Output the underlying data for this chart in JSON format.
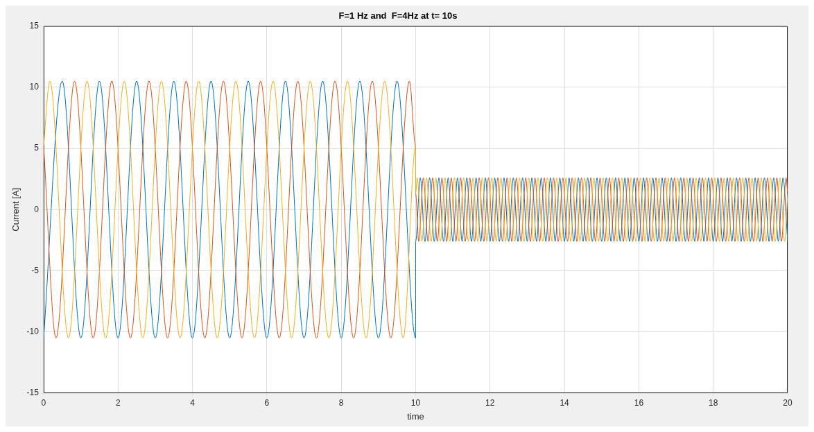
{
  "chart_data": {
    "type": "line",
    "title": "F=1 Hz and  F=4Hz at t= 10s",
    "xlabel": "time",
    "ylabel": "Current [A]",
    "xlim": [
      0,
      20
    ],
    "xticks": [
      0,
      2,
      4,
      6,
      8,
      10,
      12,
      14,
      16,
      18,
      20
    ],
    "ylim": [
      -15,
      15
    ],
    "yticks": [
      -15,
      -10,
      -5,
      0,
      5,
      10,
      15
    ],
    "grid": true,
    "marker": "none",
    "line_style": "solid",
    "series": [
      {
        "color": "#0072bd",
        "x": [
          0,
          0.5,
          1,
          1.5,
          2,
          2.5,
          3,
          3.5,
          4,
          4.5,
          5,
          5.5,
          6,
          6.5,
          7,
          7.5,
          8,
          8.5,
          9,
          9.5,
          10,
          10,
          10.125,
          10.25,
          10.375,
          10.5,
          10.625,
          10.75,
          10.875,
          11,
          11.125,
          11.25,
          11.375,
          11.5,
          11.625,
          11.75,
          11.875,
          12,
          12.125,
          12.25,
          12.375,
          12.5,
          12.625,
          12.75,
          12.875,
          13,
          13.125,
          13.25,
          13.375,
          13.5,
          13.625,
          13.75,
          13.875,
          14,
          14.125,
          14.25,
          14.375,
          14.5,
          14.625,
          14.75,
          14.875,
          15,
          15.125,
          15.25,
          15.375,
          15.5,
          15.625,
          15.75,
          15.875,
          16,
          16.125,
          16.25,
          16.375,
          16.5,
          16.625,
          16.75,
          16.875,
          17,
          17.125,
          17.25,
          17.375,
          17.5,
          17.625,
          17.75,
          17.875,
          18,
          18.125,
          18.25,
          18.375,
          18.5,
          18.625,
          18.75,
          18.875,
          19,
          19.125,
          19.25,
          19.375,
          19.5,
          19.625,
          19.75,
          19.875,
          20
        ],
        "values": [
          -10.5,
          10.5,
          -10.5,
          10.5,
          -10.5,
          10.5,
          -10.5,
          10.5,
          -10.5,
          10.5,
          -10.5,
          10.5,
          -10.5,
          10.5,
          -10.5,
          10.5,
          -10.5,
          10.5,
          -10.5,
          10.5,
          -10.5,
          -2.6,
          2.6,
          -2.6,
          2.6,
          -2.6,
          2.6,
          -2.6,
          2.6,
          -2.6,
          2.6,
          -2.6,
          2.6,
          -2.6,
          2.6,
          -2.6,
          2.6,
          -2.6,
          2.6,
          -2.6,
          2.6,
          -2.6,
          2.6,
          -2.6,
          2.6,
          -2.6,
          2.6,
          -2.6,
          2.6,
          -2.6,
          2.6,
          -2.6,
          2.6,
          -2.6,
          2.6,
          -2.6,
          2.6,
          -2.6,
          2.6,
          -2.6,
          2.6,
          -2.6,
          2.6,
          -2.6,
          2.6,
          -2.6,
          2.6,
          -2.6,
          2.6,
          -2.6,
          2.6,
          -2.6,
          2.6,
          -2.6,
          2.6,
          -2.6,
          2.6,
          -2.6,
          2.6,
          -2.6,
          2.6,
          -2.6,
          2.6,
          -2.6,
          2.6,
          -2.6,
          2.6,
          -2.6,
          2.6,
          -2.6,
          2.6,
          -2.6,
          2.6,
          -2.6,
          2.6,
          -2.6,
          2.6,
          -2.6,
          2.6,
          -2.6,
          2.6,
          -2.6
        ]
      },
      {
        "color": "#d95319",
        "x": [
          0,
          0.333,
          0.833,
          1.333,
          1.833,
          2.333,
          2.833,
          3.333,
          3.833,
          4.333,
          4.833,
          5.333,
          5.833,
          6.333,
          6.833,
          7.333,
          7.833,
          8.333,
          8.833,
          9.333,
          9.833,
          10,
          10,
          10.083,
          10.208,
          10.333,
          10.458,
          10.583,
          10.708,
          10.833,
          10.958,
          11.083,
          11.208,
          11.333,
          11.458,
          11.583,
          11.708,
          11.833,
          11.958,
          12.083,
          12.208,
          12.333,
          12.458,
          12.583,
          12.708,
          12.833,
          12.958,
          13.083,
          13.208,
          13.333,
          13.458,
          13.583,
          13.708,
          13.833,
          13.958,
          14.083,
          14.208,
          14.333,
          14.458,
          14.583,
          14.708,
          14.833,
          14.958,
          15.083,
          15.208,
          15.333,
          15.458,
          15.583,
          15.708,
          15.833,
          15.958,
          16.083,
          16.208,
          16.333,
          16.458,
          16.583,
          16.708,
          16.833,
          16.958,
          17.083,
          17.208,
          17.333,
          17.458,
          17.583,
          17.708,
          17.833,
          17.958,
          18.083,
          18.208,
          18.333,
          18.458,
          18.583,
          18.708,
          18.833,
          18.958,
          19.083,
          19.208,
          19.333,
          19.458,
          19.583,
          19.708,
          19.833,
          19.958,
          20
        ],
        "values": [
          5.2,
          -10.5,
          10.5,
          -10.5,
          10.5,
          -10.5,
          10.5,
          -10.5,
          10.5,
          -10.5,
          10.5,
          -10.5,
          10.5,
          -10.5,
          10.5,
          -10.5,
          10.5,
          -10.5,
          10.5,
          -10.5,
          10.5,
          5.2,
          1.3,
          -2.6,
          2.6,
          -2.6,
          2.6,
          -2.6,
          2.6,
          -2.6,
          2.6,
          -2.6,
          2.6,
          -2.6,
          2.6,
          -2.6,
          2.6,
          -2.6,
          2.6,
          -2.6,
          2.6,
          -2.6,
          2.6,
          -2.6,
          2.6,
          -2.6,
          2.6,
          -2.6,
          2.6,
          -2.6,
          2.6,
          -2.6,
          2.6,
          -2.6,
          2.6,
          -2.6,
          2.6,
          -2.6,
          2.6,
          -2.6,
          2.6,
          -2.6,
          2.6,
          -2.6,
          2.6,
          -2.6,
          2.6,
          -2.6,
          2.6,
          -2.6,
          2.6,
          -2.6,
          2.6,
          -2.6,
          2.6,
          -2.6,
          2.6,
          -2.6,
          2.6,
          -2.6,
          2.6,
          -2.6,
          2.6,
          -2.6,
          2.6,
          -2.6,
          2.6,
          -2.6,
          2.6,
          -2.6,
          2.6,
          -2.6,
          2.6,
          -2.6,
          2.6,
          -2.6,
          2.6,
          -2.6,
          2.6,
          -2.6,
          2.6,
          -2.6,
          2.6,
          1.3
        ]
      },
      {
        "color": "#edb120",
        "x": [
          0,
          0.167,
          0.667,
          1.167,
          1.667,
          2.167,
          2.667,
          3.167,
          3.667,
          4.167,
          4.667,
          5.167,
          5.667,
          6.167,
          6.667,
          7.167,
          7.667,
          8.167,
          8.667,
          9.167,
          9.667,
          10,
          10,
          10.042,
          10.167,
          10.292,
          10.417,
          10.542,
          10.667,
          10.792,
          10.917,
          11.042,
          11.167,
          11.292,
          11.417,
          11.542,
          11.667,
          11.792,
          11.917,
          12.042,
          12.167,
          12.292,
          12.417,
          12.542,
          12.667,
          12.792,
          12.917,
          13.042,
          13.167,
          13.292,
          13.417,
          13.542,
          13.667,
          13.792,
          13.917,
          14.042,
          14.167,
          14.292,
          14.417,
          14.542,
          14.667,
          14.792,
          14.917,
          15.042,
          15.167,
          15.292,
          15.417,
          15.542,
          15.667,
          15.792,
          15.917,
          16.042,
          16.167,
          16.292,
          16.417,
          16.542,
          16.667,
          16.792,
          16.917,
          17.042,
          17.167,
          17.292,
          17.417,
          17.542,
          17.667,
          17.792,
          17.917,
          18.042,
          18.167,
          18.292,
          18.417,
          18.542,
          18.667,
          18.792,
          18.917,
          19.042,
          19.167,
          19.292,
          19.417,
          19.542,
          19.667,
          19.792,
          19.917,
          20
        ],
        "values": [
          5.2,
          10.5,
          -10.5,
          10.5,
          -10.5,
          10.5,
          -10.5,
          10.5,
          -10.5,
          10.5,
          -10.5,
          10.5,
          -10.5,
          10.5,
          -10.5,
          10.5,
          -10.5,
          10.5,
          -10.5,
          10.5,
          -10.5,
          5.2,
          1.3,
          2.6,
          -2.6,
          2.6,
          -2.6,
          2.6,
          -2.6,
          2.6,
          -2.6,
          2.6,
          -2.6,
          2.6,
          -2.6,
          2.6,
          -2.6,
          2.6,
          -2.6,
          2.6,
          -2.6,
          2.6,
          -2.6,
          2.6,
          -2.6,
          2.6,
          -2.6,
          2.6,
          -2.6,
          2.6,
          -2.6,
          2.6,
          -2.6,
          2.6,
          -2.6,
          2.6,
          -2.6,
          2.6,
          -2.6,
          2.6,
          -2.6,
          2.6,
          -2.6,
          2.6,
          -2.6,
          2.6,
          -2.6,
          2.6,
          -2.6,
          2.6,
          -2.6,
          2.6,
          -2.6,
          2.6,
          -2.6,
          2.6,
          -2.6,
          2.6,
          -2.6,
          2.6,
          -2.6,
          2.6,
          -2.6,
          2.6,
          -2.6,
          2.6,
          -2.6,
          2.6,
          -2.6,
          2.6,
          -2.6,
          2.6,
          -2.6,
          2.6,
          -2.6,
          2.6,
          -2.6,
          2.6,
          -2.6,
          2.6,
          -2.6,
          2.6,
          -2.6,
          1.3
        ]
      }
    ]
  }
}
